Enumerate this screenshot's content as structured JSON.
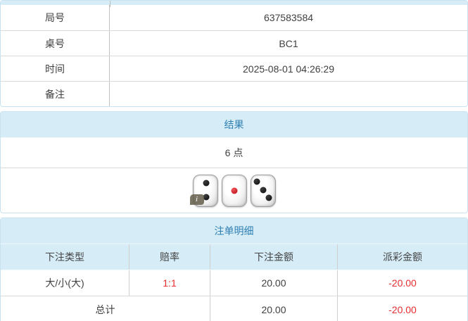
{
  "colors": {
    "accent_blue": "#2f7fb2",
    "band_background": "#d6ecf7",
    "card_border": "#c9e2f0",
    "negative_red": "#e62e30",
    "text": "#404040"
  },
  "game_info": {
    "rows": [
      {
        "label": "局号",
        "value": "637583584"
      },
      {
        "label": "桌号",
        "value": "BC1"
      },
      {
        "label": "时间",
        "value": "2025-08-01 04:26:29"
      },
      {
        "label": "备注",
        "value": ""
      }
    ]
  },
  "result": {
    "header": "结果",
    "points": "6 点",
    "dice": [
      2,
      1,
      3
    ],
    "info_badge": "i"
  },
  "bets": {
    "header": "注单明细",
    "columns": [
      "下注类型",
      "赔率",
      "下注金额",
      "派彩金额"
    ],
    "rows": [
      {
        "type": "大/小(大)",
        "odds": "1:1",
        "amount": "20.00",
        "payout": "-20.00"
      }
    ],
    "total": {
      "label": "总计",
      "amount": "20.00",
      "payout": "-20.00"
    }
  }
}
